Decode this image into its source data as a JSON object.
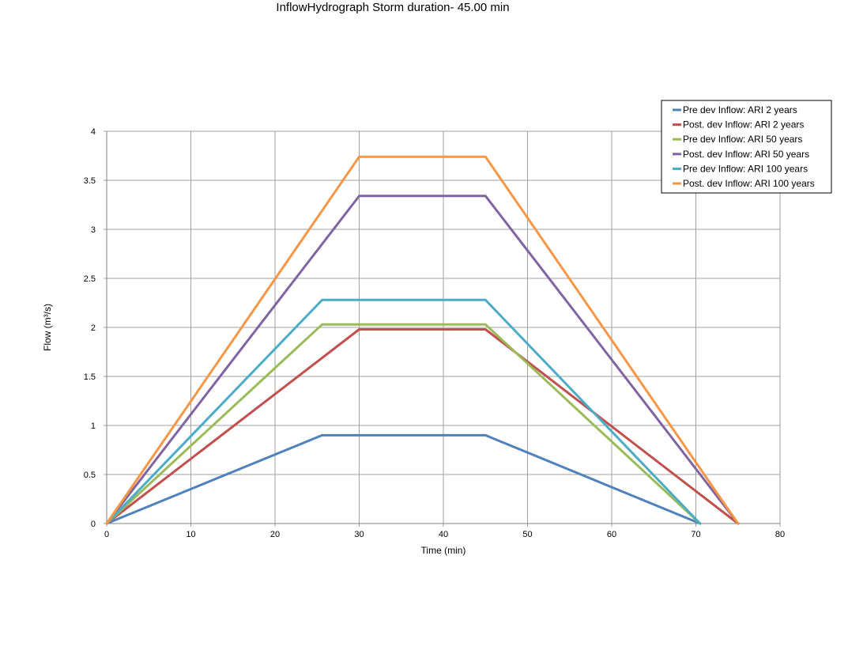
{
  "chart_data": {
    "type": "line",
    "title": "InflowHydrograph Storm duration- 45.00 min",
    "xlabel": "Time (min)",
    "ylabel": "Flow (m³/s)",
    "xlim": [
      0,
      80
    ],
    "ylim": [
      0,
      4
    ],
    "xticks": [
      "0",
      "10",
      "20",
      "30",
      "40",
      "50",
      "60",
      "70",
      "80"
    ],
    "yticks": [
      "0",
      "0.5",
      "1",
      "1.5",
      "2",
      "2.5",
      "3",
      "3.5",
      "4"
    ],
    "grid": true,
    "legend_position": "top-right",
    "series": [
      {
        "name": "Pre dev Inflow: ARI 2 years",
        "color": "#4f81bd",
        "x": [
          0,
          25.6,
          45,
          70.5
        ],
        "y": [
          0,
          0.9,
          0.9,
          0
        ]
      },
      {
        "name": "Post. dev Inflow: ARI 2 years",
        "color": "#c0504d",
        "x": [
          0,
          30,
          45,
          75
        ],
        "y": [
          0,
          1.98,
          1.98,
          0
        ]
      },
      {
        "name": "Pre dev Inflow: ARI 50 years",
        "color": "#9bbb59",
        "x": [
          0,
          25.6,
          45,
          70.5
        ],
        "y": [
          0,
          2.03,
          2.03,
          0
        ]
      },
      {
        "name": "Post. dev Inflow: ARI 50 years",
        "color": "#8064a2",
        "x": [
          0,
          30,
          45,
          75
        ],
        "y": [
          0,
          3.34,
          3.34,
          0
        ]
      },
      {
        "name": "Pre dev Inflow: ARI 100 years",
        "color": "#4bacc6",
        "x": [
          0,
          25.6,
          45,
          70.5
        ],
        "y": [
          0,
          2.28,
          2.28,
          0
        ]
      },
      {
        "name": "Post. dev Inflow: ARI 100 years",
        "color": "#f79646",
        "x": [
          0,
          30,
          45,
          75
        ],
        "y": [
          0,
          3.74,
          3.74,
          0
        ]
      }
    ]
  }
}
